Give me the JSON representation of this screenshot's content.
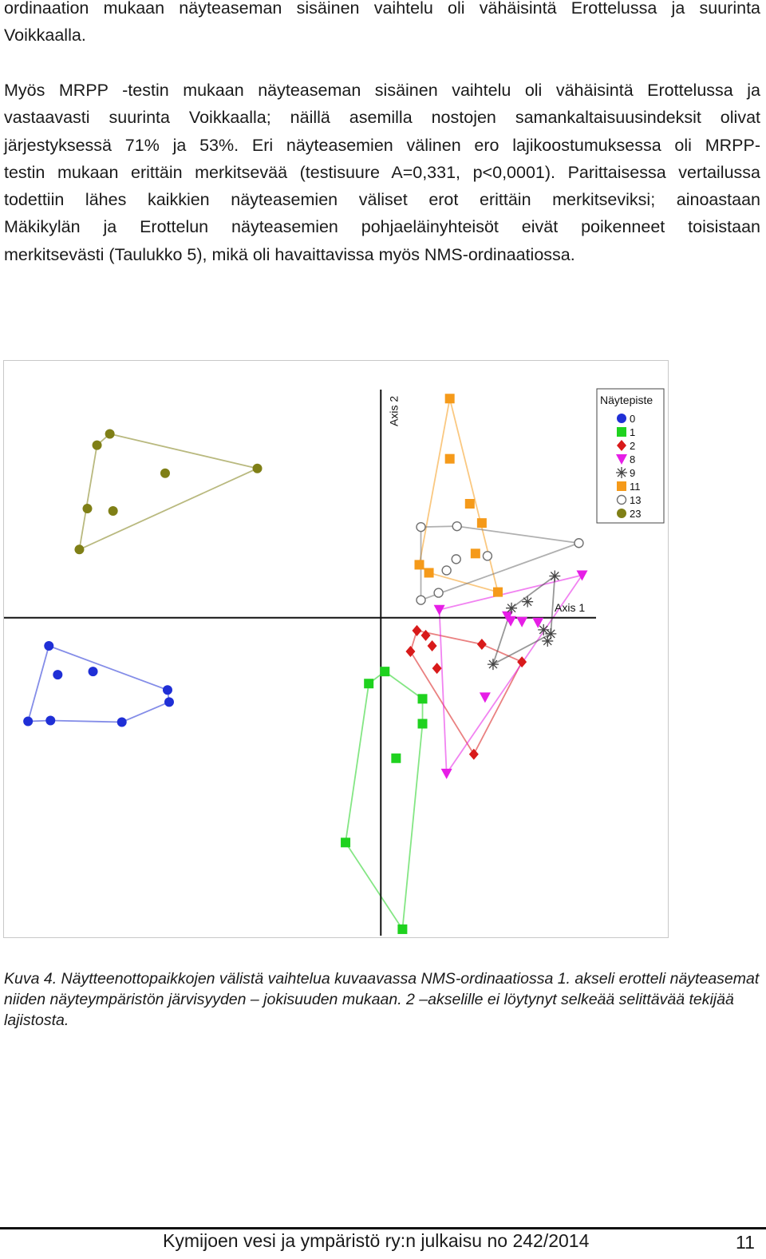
{
  "text": {
    "para1": [
      "ordinaation mukaan näyteaseman sisäinen vaihtelu oli vähäisintä Erottelussa ja suurinta",
      "Voikkaalla."
    ],
    "para2": [
      "Myös MRPP -testin mukaan näyteaseman sisäinen vaihtelu oli vähäisintä Erottelussa ja",
      "vastaavasti suurinta Voikkaalla; näillä asemilla nostojen samankaltaisuusindeksit olivat",
      "järjestyksessä 71% ja 53%. Eri näyteasemien välinen ero lajikoostumuksessa oli MRPP-",
      "testin mukaan erittäin merkitsevää (testisuure A=0,331, p<0,0001). Parittaisessa vertailussa",
      "todettiin lähes kaikkien näyteasemien väliset erot erittäin merkitseviksi; ainoastaan",
      "Mäkikylän ja Erottelun näyteasemien pohjaeläinyhteisöt eivät poikenneet toisistaan",
      "merkitsevästi (Taulukko 5), mikä oli havaittavissa myös NMS-ordinaatiossa."
    ],
    "caption": "Kuva 4. Näytteenottopaikkojen välistä vaihtelua kuvaavassa NMS-ordinaatiossa 1. akseli erotteli näyteasemat niiden näyteympäristön järvisyyden – jokisuuden mukaan. 2 –akselille ei löytynyt selkeää selittävää tekijää lajistosta.",
    "footer": "Kymijoen vesi ja ympäristö ry:n julkaisu no 242/2014",
    "page_number": "11"
  },
  "chart_data": {
    "type": "scatter",
    "title": "",
    "xlabel": "Axis 1",
    "ylabel": "Axis 2",
    "xlim": [
      -47,
      36
    ],
    "ylim": [
      -40,
      32
    ],
    "legend_title": "Näytepiste",
    "legend_position": "top-right",
    "grid": false,
    "series": [
      {
        "name": "0",
        "color": "#1f2fd6",
        "marker": "circle-filled",
        "points": [
          [
            -41.4,
            -3.5
          ],
          [
            -40.3,
            -7.1
          ],
          [
            -35.9,
            -6.7
          ],
          [
            -44.0,
            -12.9
          ],
          [
            -41.2,
            -12.8
          ],
          [
            -32.3,
            -13.0
          ],
          [
            -26.6,
            -9.0
          ],
          [
            -26.4,
            -10.5
          ]
        ],
        "hull": [
          [
            -41.4,
            -3.5
          ],
          [
            -26.6,
            -9.0
          ],
          [
            -26.4,
            -10.5
          ],
          [
            -32.3,
            -13.0
          ],
          [
            -41.2,
            -12.8
          ],
          [
            -44.0,
            -12.9
          ]
        ]
      },
      {
        "name": "1",
        "color": "#1fd21f",
        "marker": "square",
        "points": [
          [
            0.5,
            -6.7
          ],
          [
            -1.5,
            -8.2
          ],
          [
            5.2,
            -10.1
          ],
          [
            5.2,
            -13.2
          ],
          [
            1.9,
            -17.5
          ],
          [
            -4.4,
            -28.0
          ],
          [
            2.7,
            -38.8
          ]
        ],
        "hull": [
          [
            0.5,
            -6.7
          ],
          [
            5.2,
            -10.1
          ],
          [
            5.2,
            -13.2
          ],
          [
            2.7,
            -38.8
          ],
          [
            -4.4,
            -28.0
          ],
          [
            -1.5,
            -8.2
          ]
        ]
      },
      {
        "name": "2",
        "color": "#d81a1a",
        "marker": "diamond",
        "points": [
          [
            4.5,
            -1.6
          ],
          [
            5.6,
            -2.2
          ],
          [
            6.4,
            -3.5
          ],
          [
            3.7,
            -4.2
          ],
          [
            7.0,
            -6.3
          ],
          [
            12.6,
            -3.3
          ],
          [
            17.6,
            -5.5
          ],
          [
            11.6,
            -17.0
          ]
        ],
        "hull": [
          [
            4.5,
            -1.6
          ],
          [
            12.6,
            -3.3
          ],
          [
            17.6,
            -5.5
          ],
          [
            11.6,
            -17.0
          ],
          [
            3.7,
            -4.2
          ]
        ]
      },
      {
        "name": "8",
        "color": "#e61ee6",
        "marker": "triangle-down",
        "points": [
          [
            25.1,
            5.3
          ],
          [
            7.3,
            1.0
          ],
          [
            15.8,
            0.2
          ],
          [
            16.2,
            -0.4
          ],
          [
            17.6,
            -0.5
          ],
          [
            19.6,
            -0.6
          ],
          [
            13.0,
            -9.9
          ],
          [
            8.2,
            -19.4
          ]
        ],
        "hull": [
          [
            25.1,
            5.3
          ],
          [
            8.2,
            -19.4
          ],
          [
            7.3,
            1.0
          ]
        ]
      },
      {
        "name": "9",
        "color": "#444444",
        "marker": "asterisk",
        "points": [
          [
            21.7,
            5.2
          ],
          [
            18.3,
            2.0
          ],
          [
            16.3,
            1.2
          ],
          [
            20.3,
            -1.5
          ],
          [
            21.2,
            -2.0
          ],
          [
            20.8,
            -2.9
          ],
          [
            14.0,
            -5.8
          ]
        ],
        "hull": [
          [
            21.7,
            5.2
          ],
          [
            21.2,
            -2.0
          ],
          [
            14.0,
            -5.8
          ],
          [
            16.3,
            1.2
          ]
        ]
      },
      {
        "name": "11",
        "color": "#f59a1a",
        "marker": "square",
        "points": [
          [
            8.6,
            27.3
          ],
          [
            8.6,
            19.8
          ],
          [
            11.1,
            14.2
          ],
          [
            12.6,
            11.8
          ],
          [
            11.8,
            8.0
          ],
          [
            4.8,
            6.6
          ],
          [
            6.0,
            5.6
          ],
          [
            14.6,
            3.2
          ]
        ],
        "hull": [
          [
            8.6,
            27.3
          ],
          [
            14.6,
            3.2
          ],
          [
            6.0,
            5.6
          ],
          [
            4.8,
            6.6
          ]
        ]
      },
      {
        "name": "13",
        "color": "#707070",
        "marker": "circle-open",
        "points": [
          [
            5.0,
            11.3
          ],
          [
            9.5,
            11.4
          ],
          [
            24.7,
            9.3
          ],
          [
            13.3,
            7.7
          ],
          [
            9.4,
            7.3
          ],
          [
            8.2,
            5.9
          ],
          [
            5.0,
            2.2
          ],
          [
            7.2,
            3.1
          ]
        ],
        "hull": [
          [
            5.0,
            11.3
          ],
          [
            9.5,
            11.4
          ],
          [
            24.7,
            9.3
          ],
          [
            5.0,
            2.2
          ]
        ]
      },
      {
        "name": "23",
        "color": "#7f7f16",
        "marker": "circle-filled",
        "points": [
          [
            -33.8,
            22.9
          ],
          [
            -35.4,
            21.5
          ],
          [
            -26.9,
            18.0
          ],
          [
            -15.4,
            18.6
          ],
          [
            -36.6,
            13.6
          ],
          [
            -33.4,
            13.3
          ],
          [
            -37.6,
            8.5
          ]
        ],
        "hull": [
          [
            -33.8,
            22.9
          ],
          [
            -15.4,
            18.6
          ],
          [
            -37.6,
            8.5
          ],
          [
            -35.4,
            21.5
          ]
        ]
      }
    ]
  }
}
